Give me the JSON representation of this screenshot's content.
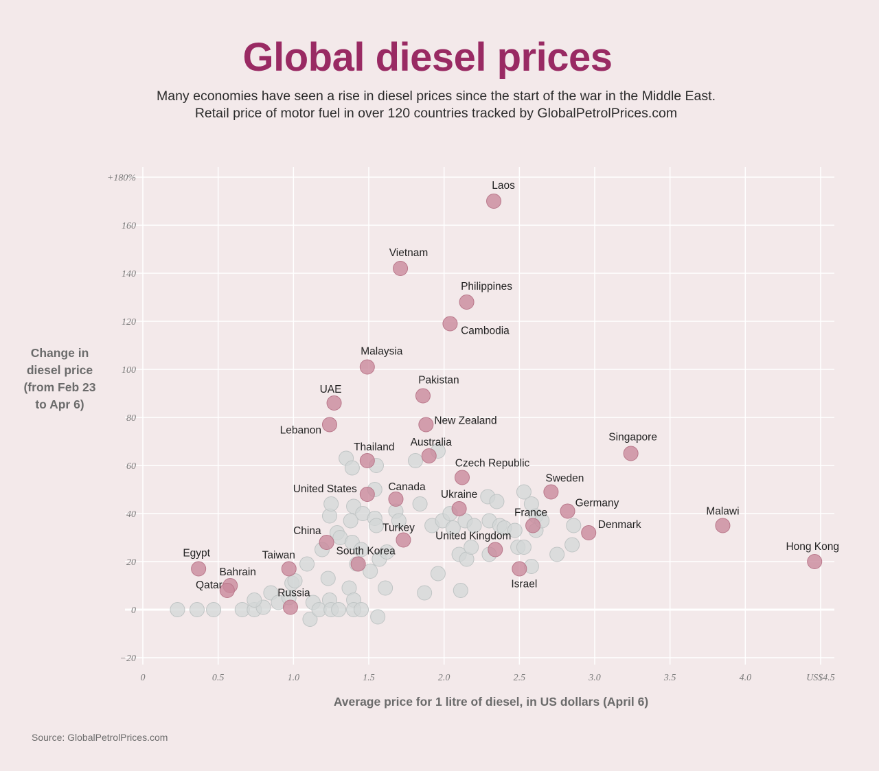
{
  "title": "Global diesel prices",
  "subtitle_lines": [
    "Many economies have seen a rise in diesel prices since the start of the war in the Middle East.",
    "Retail price of motor fuel in over 120 countries tracked by GlobalPetrolPrices.com"
  ],
  "source": "Source: GlobalPetrolPrices.com",
  "colors": {
    "title": "#992a63",
    "highlight": "#c98a9c",
    "other": "#d3d7d7",
    "background": "#f3e9ea",
    "grid": "#ffffff"
  },
  "chart_data": {
    "type": "scatter",
    "xlabel": "Average price for 1 litre of diesel, in US dollars (April 6)",
    "ylabel": "Change in diesel price (from Feb 23 to Apr 6)",
    "ylabel_lines": [
      "Change in",
      "diesel price",
      "(from Feb 23",
      "to Apr 6)"
    ],
    "xlim": [
      0,
      4.5
    ],
    "ylim": [
      -20,
      180
    ],
    "grid": true,
    "x_ticks": [
      {
        "value": 0,
        "label": "0"
      },
      {
        "value": 0.5,
        "label": "0.5"
      },
      {
        "value": 1,
        "label": "1.0"
      },
      {
        "value": 1.5,
        "label": "1.5"
      },
      {
        "value": 2,
        "label": "2.0"
      },
      {
        "value": 2.5,
        "label": "2.5"
      },
      {
        "value": 3,
        "label": "3.0"
      },
      {
        "value": 3.5,
        "label": "3.5"
      },
      {
        "value": 4,
        "label": "4.0"
      },
      {
        "value": 4.5,
        "label": "US$4.5"
      }
    ],
    "y_ticks": [
      {
        "value": 180,
        "label": "+180%"
      },
      {
        "value": 160,
        "label": "160"
      },
      {
        "value": 140,
        "label": "140"
      },
      {
        "value": 120,
        "label": "120"
      },
      {
        "value": 100,
        "label": "100"
      },
      {
        "value": 80,
        "label": "80"
      },
      {
        "value": 60,
        "label": "60"
      },
      {
        "value": 40,
        "label": "40"
      },
      {
        "value": 20,
        "label": "20"
      },
      {
        "value": 0,
        "label": "0"
      },
      {
        "value": -20,
        "label": "−20"
      }
    ],
    "highlighted": [
      {
        "name": "Laos",
        "x": 2.33,
        "y": 170
      },
      {
        "name": "Vietnam",
        "x": 1.71,
        "y": 142
      },
      {
        "name": "Philippines",
        "x": 2.15,
        "y": 128
      },
      {
        "name": "Cambodia",
        "x": 2.04,
        "y": 119
      },
      {
        "name": "Malaysia",
        "x": 1.49,
        "y": 101
      },
      {
        "name": "Pakistan",
        "x": 1.86,
        "y": 89
      },
      {
        "name": "UAE",
        "x": 1.27,
        "y": 86
      },
      {
        "name": "Lebanon",
        "x": 1.24,
        "y": 77
      },
      {
        "name": "New Zealand",
        "x": 1.88,
        "y": 77
      },
      {
        "name": "Singapore",
        "x": 3.24,
        "y": 65
      },
      {
        "name": "Australia",
        "x": 1.9,
        "y": 64
      },
      {
        "name": "Thailand",
        "x": 1.49,
        "y": 62
      },
      {
        "name": "Czech Republic",
        "x": 2.12,
        "y": 55
      },
      {
        "name": "Sweden",
        "x": 2.71,
        "y": 49
      },
      {
        "name": "United States",
        "x": 1.49,
        "y": 48
      },
      {
        "name": "Canada",
        "x": 1.68,
        "y": 46
      },
      {
        "name": "Ukraine",
        "x": 2.1,
        "y": 42
      },
      {
        "name": "Germany",
        "x": 2.82,
        "y": 41
      },
      {
        "name": "France",
        "x": 2.59,
        "y": 35
      },
      {
        "name": "Malawi",
        "x": 3.85,
        "y": 35
      },
      {
        "name": "Denmark",
        "x": 2.96,
        "y": 32
      },
      {
        "name": "China",
        "x": 1.22,
        "y": 28
      },
      {
        "name": "Turkey",
        "x": 1.73,
        "y": 29
      },
      {
        "name": "United Kingdom",
        "x": 2.34,
        "y": 25
      },
      {
        "name": "South Korea",
        "x": 1.43,
        "y": 19
      },
      {
        "name": "Hong Kong",
        "x": 4.46,
        "y": 20
      },
      {
        "name": "Egypt",
        "x": 0.37,
        "y": 17
      },
      {
        "name": "Taiwan",
        "x": 0.97,
        "y": 17
      },
      {
        "name": "Israel",
        "x": 2.5,
        "y": 17
      },
      {
        "name": "Bahrain",
        "x": 0.58,
        "y": 10
      },
      {
        "name": "Qatar",
        "x": 0.56,
        "y": 8
      },
      {
        "name": "Russia",
        "x": 0.98,
        "y": 1
      }
    ],
    "others": [
      [
        0.23,
        0
      ],
      [
        0.36,
        0
      ],
      [
        0.47,
        0
      ],
      [
        0.66,
        0
      ],
      [
        0.74,
        0
      ],
      [
        0.8,
        1
      ],
      [
        0.74,
        4
      ],
      [
        0.85,
        7
      ],
      [
        0.9,
        3
      ],
      [
        0.97,
        5
      ],
      [
        0.99,
        11
      ],
      [
        1.01,
        12
      ],
      [
        1.09,
        19
      ],
      [
        1.13,
        3
      ],
      [
        1.11,
        -4
      ],
      [
        1.17,
        0
      ],
      [
        1.19,
        25
      ],
      [
        1.23,
        13
      ],
      [
        1.24,
        4
      ],
      [
        1.25,
        0
      ],
      [
        1.3,
        0
      ],
      [
        1.24,
        39
      ],
      [
        1.25,
        44
      ],
      [
        1.29,
        32
      ],
      [
        1.31,
        30
      ],
      [
        1.35,
        63
      ],
      [
        1.39,
        59
      ],
      [
        1.4,
        43
      ],
      [
        1.38,
        37
      ],
      [
        1.39,
        28
      ],
      [
        1.37,
        9
      ],
      [
        1.4,
        4
      ],
      [
        1.4,
        0
      ],
      [
        1.45,
        0
      ],
      [
        1.42,
        19
      ],
      [
        1.45,
        25
      ],
      [
        1.46,
        40
      ],
      [
        1.51,
        16
      ],
      [
        1.54,
        50
      ],
      [
        1.55,
        60
      ],
      [
        1.54,
        38
      ],
      [
        1.55,
        35
      ],
      [
        1.56,
        -3
      ],
      [
        1.57,
        21
      ],
      [
        1.61,
        9
      ],
      [
        1.62,
        24
      ],
      [
        1.68,
        41
      ],
      [
        1.7,
        37
      ],
      [
        1.81,
        62
      ],
      [
        1.84,
        44
      ],
      [
        1.96,
        66
      ],
      [
        1.87,
        7
      ],
      [
        1.96,
        15
      ],
      [
        1.92,
        35
      ],
      [
        1.99,
        37
      ],
      [
        2.04,
        40
      ],
      [
        2.06,
        34
      ],
      [
        2.1,
        23
      ],
      [
        2.11,
        8
      ],
      [
        2.14,
        37
      ],
      [
        2.15,
        21
      ],
      [
        2.18,
        26
      ],
      [
        2.2,
        35
      ],
      [
        2.29,
        47
      ],
      [
        2.3,
        23
      ],
      [
        2.35,
        45
      ],
      [
        2.3,
        37
      ],
      [
        2.37,
        35
      ],
      [
        2.4,
        34
      ],
      [
        2.47,
        33
      ],
      [
        2.49,
        26
      ],
      [
        2.53,
        49
      ],
      [
        2.53,
        26
      ],
      [
        2.58,
        44
      ],
      [
        2.61,
        39
      ],
      [
        2.61,
        33
      ],
      [
        2.58,
        18
      ],
      [
        2.65,
        37
      ],
      [
        2.75,
        23
      ],
      [
        2.85,
        27
      ],
      [
        2.86,
        35
      ]
    ]
  }
}
